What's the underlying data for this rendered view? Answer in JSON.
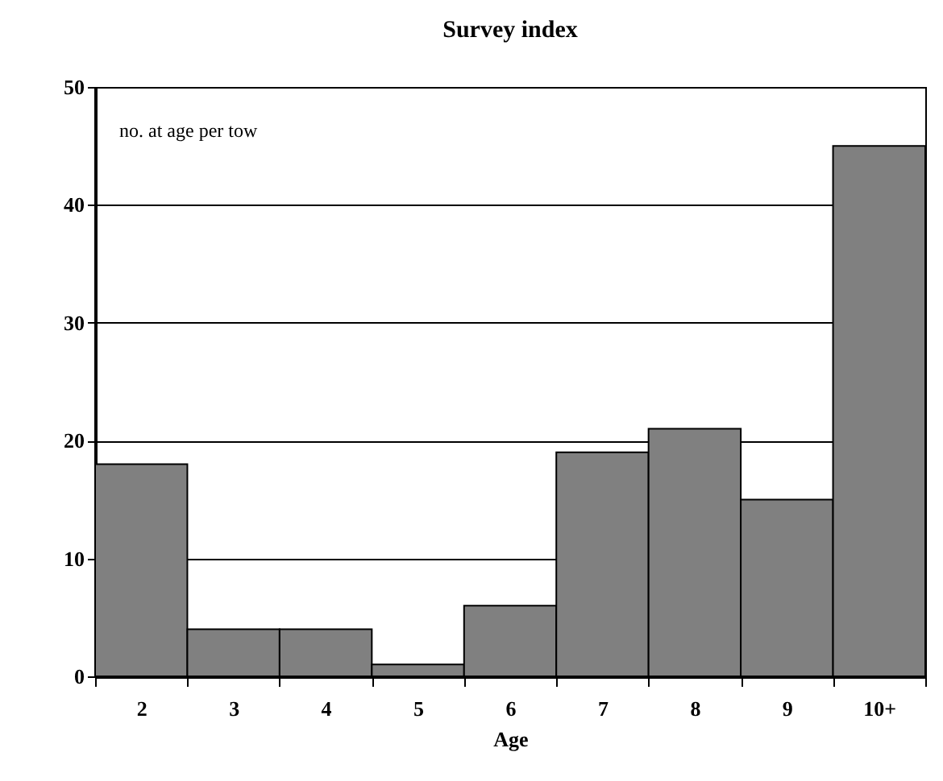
{
  "chart_data": {
    "type": "bar",
    "title": "Survey index",
    "xlabel": "Age",
    "categories": [
      "2",
      "3",
      "4",
      "5",
      "6",
      "7",
      "8",
      "9",
      "10+"
    ],
    "values": [
      18,
      4,
      4,
      1,
      6,
      19,
      21,
      15,
      45
    ],
    "color": "#808080",
    "ylim": [
      0,
      50
    ],
    "yticks": [
      0,
      10,
      20,
      30,
      40,
      50
    ],
    "grid": "y",
    "annotations": [
      "no. at age per tow"
    ]
  }
}
